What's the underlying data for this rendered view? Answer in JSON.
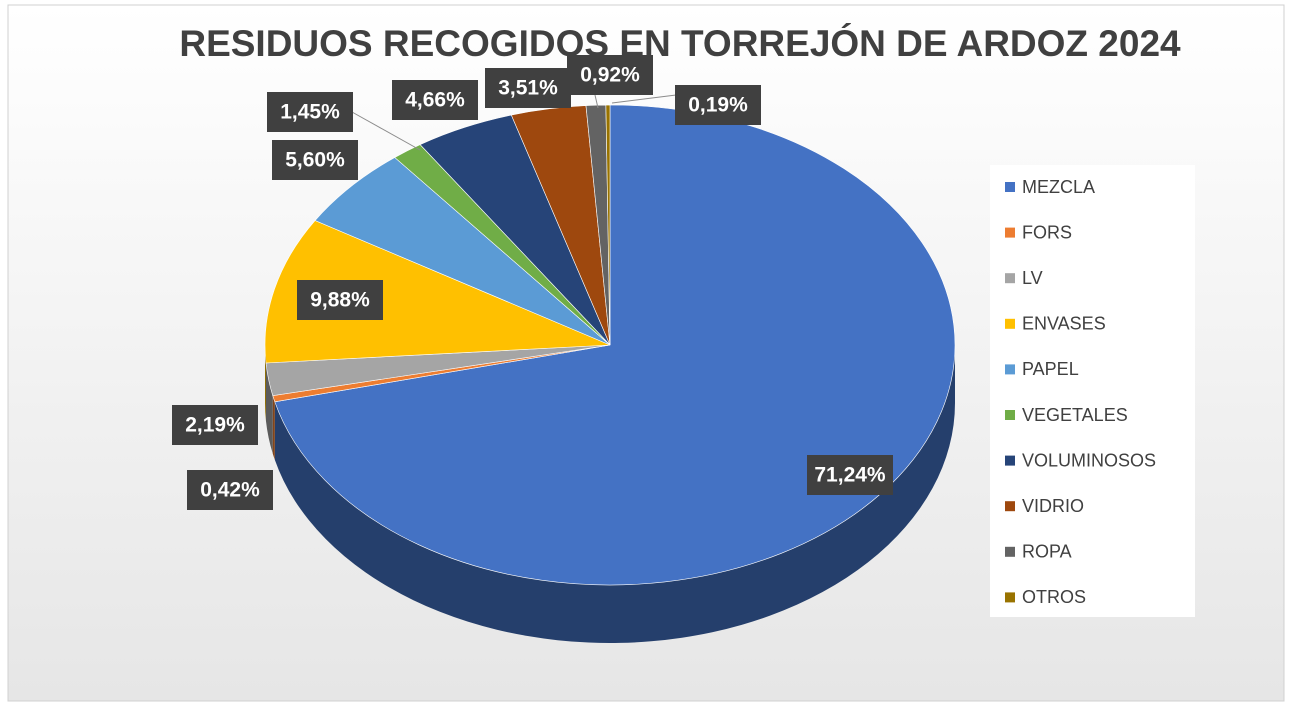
{
  "chart_data": {
    "type": "pie",
    "title": "RESIDUOS RECOGIDOS EN TORREJÓN DE ARDOZ 2024",
    "categories": [
      "MEZCLA",
      "FORS",
      "LV",
      "ENVASES",
      "PAPEL",
      "VEGETALES",
      "VOLUMINOSOS",
      "VIDRIO",
      "ROPA",
      "OTROS"
    ],
    "values": [
      71.24,
      0.42,
      2.19,
      9.88,
      5.6,
      1.45,
      4.66,
      3.51,
      0.92,
      0.19
    ],
    "value_labels": [
      "71,24%",
      "0,42%",
      "2,19%",
      "9,88%",
      "5,60%",
      "1,45%",
      "4,66%",
      "3,51%",
      "0,92%",
      "0,19%"
    ],
    "colors": [
      "#4472c4",
      "#ed7d31",
      "#a5a5a5",
      "#ffc000",
      "#5b9bd5",
      "#70ad47",
      "#264478",
      "#9e480e",
      "#636363",
      "#997300"
    ],
    "legend": "right"
  }
}
